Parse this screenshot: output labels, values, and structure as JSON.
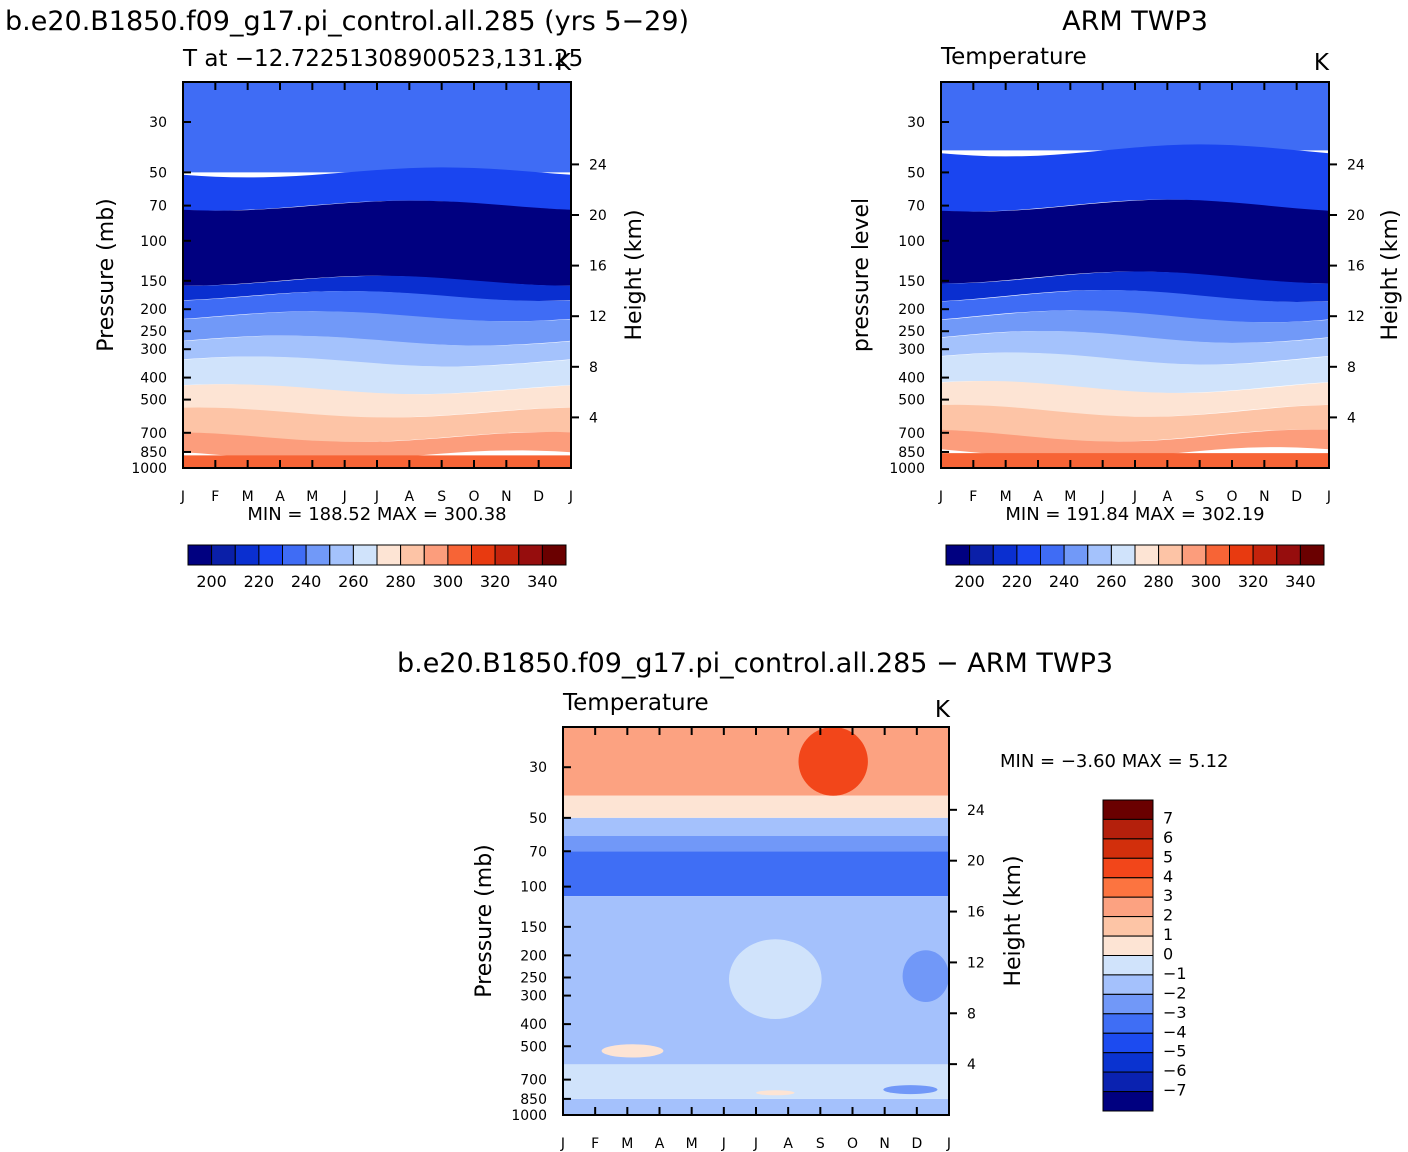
{
  "colors": {
    "abs_scale": [
      "#000080",
      "#0a1fa8",
      "#0a2fd0",
      "#1a45f0",
      "#3f6cf5",
      "#7199f8",
      "#a4c2fc",
      "#d0e3fb",
      "#fde4d4",
      "#fdc4a6",
      "#fc9d7c",
      "#f76436",
      "#e83a10",
      "#c4230c",
      "#960d0d",
      "#6a0000"
    ],
    "diff_scale": [
      "#000080",
      "#0a22b0",
      "#0a33d0",
      "#1c4bf0",
      "#3f6ef5",
      "#7198f8",
      "#a4c1fc",
      "#d0e3fb",
      "#fde4d4",
      "#fdc5a6",
      "#fca281",
      "#fc7440",
      "#f2461a",
      "#d22f0c",
      "#b4200c",
      "#6a0000"
    ]
  },
  "panels": {
    "model": {
      "title": "b.e20.B1850.f09_g17.pi_control.all.285 (yrs 5−29)",
      "subtitle": "T at −12.72251308900523,131.25",
      "units": "K",
      "ylabel": "Pressure (mb)",
      "y2label": "Height (km)",
      "minmax": "MIN = 188.52 MAX = 300.38"
    },
    "obs": {
      "title": "ARM TWP3",
      "subtitle": "Temperature",
      "units": "K",
      "ylabel": "pressure level",
      "y2label": "Height (km)",
      "minmax": "MIN = 191.84 MAX = 302.19"
    },
    "diff": {
      "title": "b.e20.B1850.f09_g17.pi_control.all.285 − ARM TWP3",
      "subtitle": "Temperature",
      "units": "K",
      "ylabel": "Pressure (mb)",
      "y2label": "Height (km)",
      "minmax": "MIN =    −3.60 MAX =      5.12"
    }
  },
  "chart_data": [
    {
      "type": "heatmap",
      "title": "b.e20.B1850.f09_g17.pi_control.all.285 (yrs 5−29)",
      "subtitle": "T at −12.72251308900523,131.25",
      "xlabel": "",
      "ylabel": "Pressure (mb)",
      "y2label": "Height (km)",
      "units": "K",
      "x_ticks": [
        "J",
        "F",
        "M",
        "A",
        "M",
        "J",
        "J",
        "A",
        "S",
        "O",
        "N",
        "D",
        "J"
      ],
      "y_ticks": [
        "30",
        "50",
        "70",
        "100",
        "150",
        "200",
        "250",
        "300",
        "400",
        "500",
        "700",
        "850",
        "1000"
      ],
      "y2_ticks": [
        "24",
        "20",
        "16",
        "12",
        "8",
        "4"
      ],
      "ylim": [
        20,
        1000
      ],
      "y_scale": "log",
      "colorbar_ticks": [
        "200",
        "220",
        "240",
        "260",
        "280",
        "300",
        "320",
        "340"
      ],
      "min": 188.52,
      "max": 300.38,
      "levels_K": [
        {
          "p": [
            20,
            50
          ],
          "T": 225
        },
        {
          "p": [
            50,
            70
          ],
          "T": 215
        },
        {
          "p": [
            70,
            150
          ],
          "T": 195
        },
        {
          "p": [
            150,
            175
          ],
          "T": 205
        },
        {
          "p": [
            175,
            215
          ],
          "T": 225
        },
        {
          "p": [
            215,
            275
          ],
          "T": 235
        },
        {
          "p": [
            275,
            340
          ],
          "T": 245
        },
        {
          "p": [
            340,
            450
          ],
          "T": 255
        },
        {
          "p": [
            450,
            570
          ],
          "T": 265
        },
        {
          "p": [
            570,
            730
          ],
          "T": 275
        },
        {
          "p": [
            730,
            880
          ],
          "T": 285
        },
        {
          "p": [
            880,
            1000
          ],
          "T": 295
        }
      ]
    },
    {
      "type": "heatmap",
      "title": "ARM TWP3",
      "subtitle": "Temperature",
      "xlabel": "",
      "ylabel": "pressure level",
      "y2label": "Height (km)",
      "units": "K",
      "x_ticks": [
        "J",
        "F",
        "M",
        "A",
        "M",
        "J",
        "J",
        "A",
        "S",
        "O",
        "N",
        "D",
        "J"
      ],
      "y_ticks": [
        "30",
        "50",
        "70",
        "100",
        "150",
        "200",
        "250",
        "300",
        "400",
        "500",
        "700",
        "850",
        "1000"
      ],
      "y2_ticks": [
        "24",
        "20",
        "16",
        "12",
        "8",
        "4"
      ],
      "ylim": [
        20,
        1000
      ],
      "y_scale": "log",
      "colorbar_ticks": [
        "200",
        "220",
        "240",
        "260",
        "280",
        "300",
        "320",
        "340"
      ],
      "min": 191.84,
      "max": 302.19,
      "levels_K": [
        {
          "p": [
            20,
            40
          ],
          "T": 225
        },
        {
          "p": [
            40,
            70
          ],
          "T": 215
        },
        {
          "p": [
            70,
            145
          ],
          "T": 195
        },
        {
          "p": [
            145,
            175
          ],
          "T": 205
        },
        {
          "p": [
            175,
            215
          ],
          "T": 225
        },
        {
          "p": [
            215,
            265
          ],
          "T": 235
        },
        {
          "p": [
            265,
            330
          ],
          "T": 245
        },
        {
          "p": [
            330,
            440
          ],
          "T": 255
        },
        {
          "p": [
            440,
            560
          ],
          "T": 265
        },
        {
          "p": [
            560,
            720
          ],
          "T": 275
        },
        {
          "p": [
            720,
            860
          ],
          "T": 285
        },
        {
          "p": [
            860,
            1000
          ],
          "T": 295
        }
      ]
    },
    {
      "type": "heatmap",
      "title": "b.e20.B1850.f09_g17.pi_control.all.285 − ARM TWP3",
      "subtitle": "Temperature",
      "xlabel": "",
      "ylabel": "Pressure (mb)",
      "y2label": "Height (km)",
      "units": "K",
      "x_ticks": [
        "J",
        "F",
        "M",
        "A",
        "M",
        "J",
        "J",
        "A",
        "S",
        "O",
        "N",
        "D",
        "J"
      ],
      "y_ticks": [
        "30",
        "50",
        "70",
        "100",
        "150",
        "200",
        "250",
        "300",
        "400",
        "500",
        "700",
        "850",
        "1000"
      ],
      "y2_ticks": [
        "24",
        "20",
        "16",
        "12",
        "8",
        "4"
      ],
      "ylim": [
        20,
        1000
      ],
      "y_scale": "log",
      "colorbar_ticks": [
        "7",
        "6",
        "5",
        "4",
        "3",
        "2",
        "1",
        "0",
        "−1",
        "−2",
        "−3",
        "−4",
        "−5",
        "−6",
        "−7"
      ],
      "min": -3.6,
      "max": 5.12,
      "levels_K": [
        {
          "p": [
            20,
            40
          ],
          "dT": 2.5
        },
        {
          "p": [
            40,
            50
          ],
          "dT": 0.5
        },
        {
          "p": [
            50,
            60
          ],
          "dT": -1.5
        },
        {
          "p": [
            60,
            70
          ],
          "dT": -2.5
        },
        {
          "p": [
            70,
            110
          ],
          "dT": -3.5
        },
        {
          "p": [
            110,
            600
          ],
          "dT": -1.5
        },
        {
          "p": [
            600,
            850
          ],
          "dT": -0.5
        },
        {
          "p": [
            850,
            1000
          ],
          "dT": -1.5
        }
      ]
    }
  ]
}
